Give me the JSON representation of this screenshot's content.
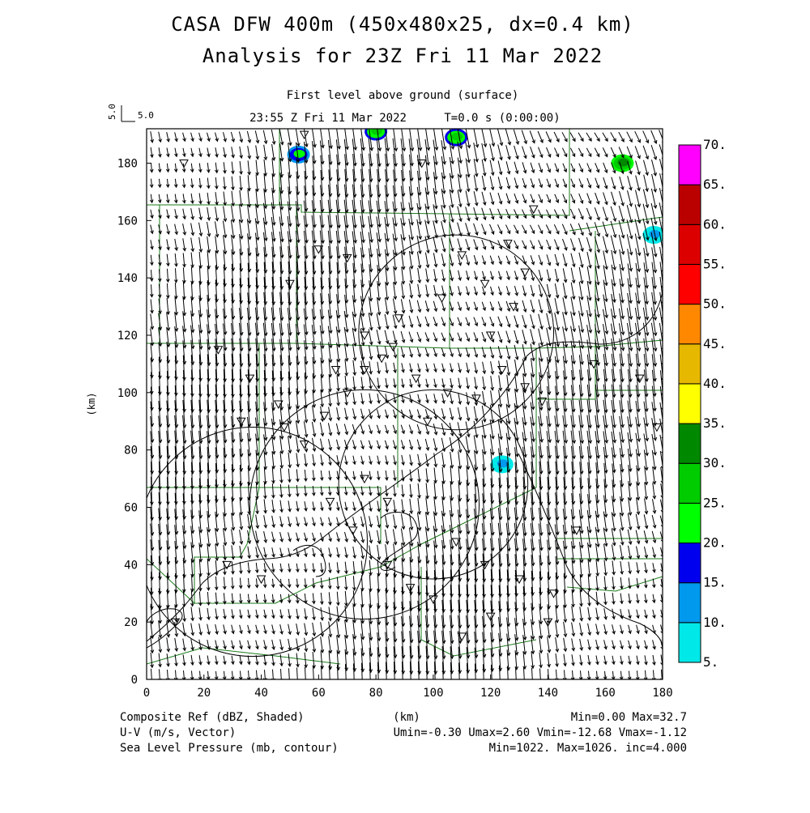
{
  "header": {
    "title": "CASA DFW 400m (450x480x25, dx=0.4 km)",
    "subtitle": "Analysis for 23Z Fri 11 Mar 2022",
    "level": "First level above ground (surface)",
    "time": "23:55 Z Fri 11 Mar 2022",
    "tstep": "T=0.0 s (0:00:00)",
    "vector_scale": "5.0",
    "vector_scale_vertical": "5.0"
  },
  "axes": {
    "x_unit": "(km)",
    "y_unit": "(km)",
    "x_ticks": [
      0,
      20,
      40,
      60,
      80,
      100,
      120,
      140,
      160,
      180
    ],
    "y_ticks": [
      0,
      20,
      40,
      60,
      80,
      100,
      120,
      140,
      160,
      180
    ],
    "xlim": [
      0,
      180
    ],
    "ylim": [
      0,
      192
    ]
  },
  "colorbar": {
    "labels": [
      "5.",
      "10.",
      "15.",
      "20.",
      "25.",
      "30.",
      "35.",
      "40.",
      "45.",
      "50.",
      "55.",
      "60.",
      "65.",
      "70."
    ],
    "colors": [
      "#00e8e8",
      "#0099ee",
      "#0000ee",
      "#00ff00",
      "#00cc00",
      "#008800",
      "#ffff00",
      "#e6b800",
      "#ff8800",
      "#ff0000",
      "#dd0000",
      "#bb0000",
      "#ff00ff"
    ]
  },
  "footer": {
    "line1_left": "Composite Ref (dBZ, Shaded)",
    "line1_mid": "(km)",
    "line1_right": "Min=0.00 Max=32.7",
    "line2_left": "U-V (m/s, Vector)",
    "line2_right": "Umin=-0.30 Umax=2.60 Vmin=-12.68 Vmax=-1.12",
    "line3_left": "Sea Level Pressure (mb, contour)",
    "line3_right": "Min=1022. Max=1026. inc=4.000"
  },
  "chart_data": {
    "type": "map",
    "fields": [
      "Composite Ref (dBZ)",
      "U-V wind vectors (m/s)",
      "Sea Level Pressure (mb)"
    ],
    "reflectivity_min": 0.0,
    "reflectivity_max": 32.7,
    "u_range": [
      -0.3,
      2.6
    ],
    "v_range": [
      -12.68,
      -1.12
    ],
    "slp_min": 1022,
    "slp_max": 1026,
    "slp_inc": 4.0,
    "echoes": [
      {
        "x": 53,
        "y": 183,
        "dbz": 22
      },
      {
        "x": 80,
        "y": 191,
        "dbz": 25
      },
      {
        "x": 108,
        "y": 189,
        "dbz": 28
      },
      {
        "x": 166,
        "y": 180,
        "dbz": 30
      },
      {
        "x": 124,
        "y": 75,
        "dbz": 10
      },
      {
        "x": 177,
        "y": 155,
        "dbz": 10
      }
    ],
    "radar_rings": [
      {
        "x": 37,
        "y": 48,
        "r": 40
      },
      {
        "x": 76,
        "y": 61,
        "r": 40
      },
      {
        "x": 100,
        "y": 68,
        "r": 33
      },
      {
        "x": 108,
        "y": 121,
        "r": 34
      }
    ],
    "stations": [
      [
        33,
        90
      ],
      [
        36,
        105
      ],
      [
        25,
        115
      ],
      [
        46,
        96
      ],
      [
        48,
        88
      ],
      [
        55,
        82
      ],
      [
        62,
        92
      ],
      [
        70,
        100
      ],
      [
        76,
        108
      ],
      [
        82,
        112
      ],
      [
        86,
        116
      ],
      [
        94,
        105
      ],
      [
        98,
        90
      ],
      [
        105,
        100
      ],
      [
        115,
        98
      ],
      [
        124,
        108
      ],
      [
        132,
        102
      ],
      [
        138,
        97
      ],
      [
        120,
        120
      ],
      [
        128,
        130
      ],
      [
        132,
        142
      ],
      [
        126,
        152
      ],
      [
        110,
        148
      ],
      [
        103,
        133
      ],
      [
        118,
        138
      ],
      [
        88,
        126
      ],
      [
        76,
        120
      ],
      [
        66,
        108
      ],
      [
        60,
        150
      ],
      [
        70,
        147
      ],
      [
        50,
        138
      ],
      [
        76,
        70
      ],
      [
        84,
        62
      ],
      [
        64,
        62
      ],
      [
        72,
        52
      ],
      [
        84,
        40
      ],
      [
        92,
        32
      ],
      [
        100,
        28
      ],
      [
        108,
        48
      ],
      [
        118,
        40
      ],
      [
        130,
        35
      ],
      [
        120,
        22
      ],
      [
        110,
        15
      ],
      [
        142,
        30
      ],
      [
        40,
        35
      ],
      [
        28,
        40
      ],
      [
        10,
        20
      ],
      [
        55,
        190
      ],
      [
        96,
        180
      ],
      [
        13,
        180
      ],
      [
        135,
        164
      ],
      [
        156,
        110
      ],
      [
        172,
        105
      ],
      [
        178,
        88
      ],
      [
        150,
        52
      ],
      [
        140,
        20
      ]
    ]
  }
}
